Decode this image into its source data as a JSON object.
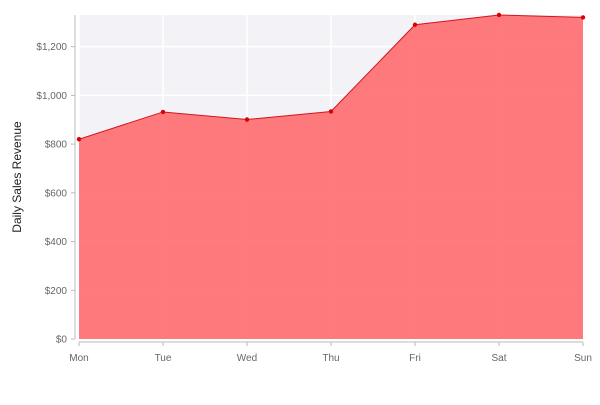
{
  "chart_data": {
    "type": "area",
    "title": "",
    "xlabel": "",
    "ylabel": "Daily Sales Revenue",
    "categories": [
      "Mon",
      "Tue",
      "Wed",
      "Thu",
      "Fri",
      "Sat",
      "Sun"
    ],
    "series": [
      {
        "values": [
          820,
          932,
          901,
          934,
          1290,
          1330,
          1320
        ]
      }
    ],
    "ylim": [
      0,
      1330
    ],
    "yticks": [
      0,
      200,
      400,
      600,
      800,
      1000,
      1200
    ],
    "ytick_labels": [
      "$0",
      "$200",
      "$400",
      "$600",
      "$800",
      "$1,000",
      "$1,200"
    ],
    "grid": true,
    "legend": "none",
    "colors": {
      "fill": "#ff6b6e",
      "line": "#d2161e",
      "point": "#dd0000",
      "plot_background": "#f3f2f7",
      "axis": "#bbbbbb"
    }
  }
}
